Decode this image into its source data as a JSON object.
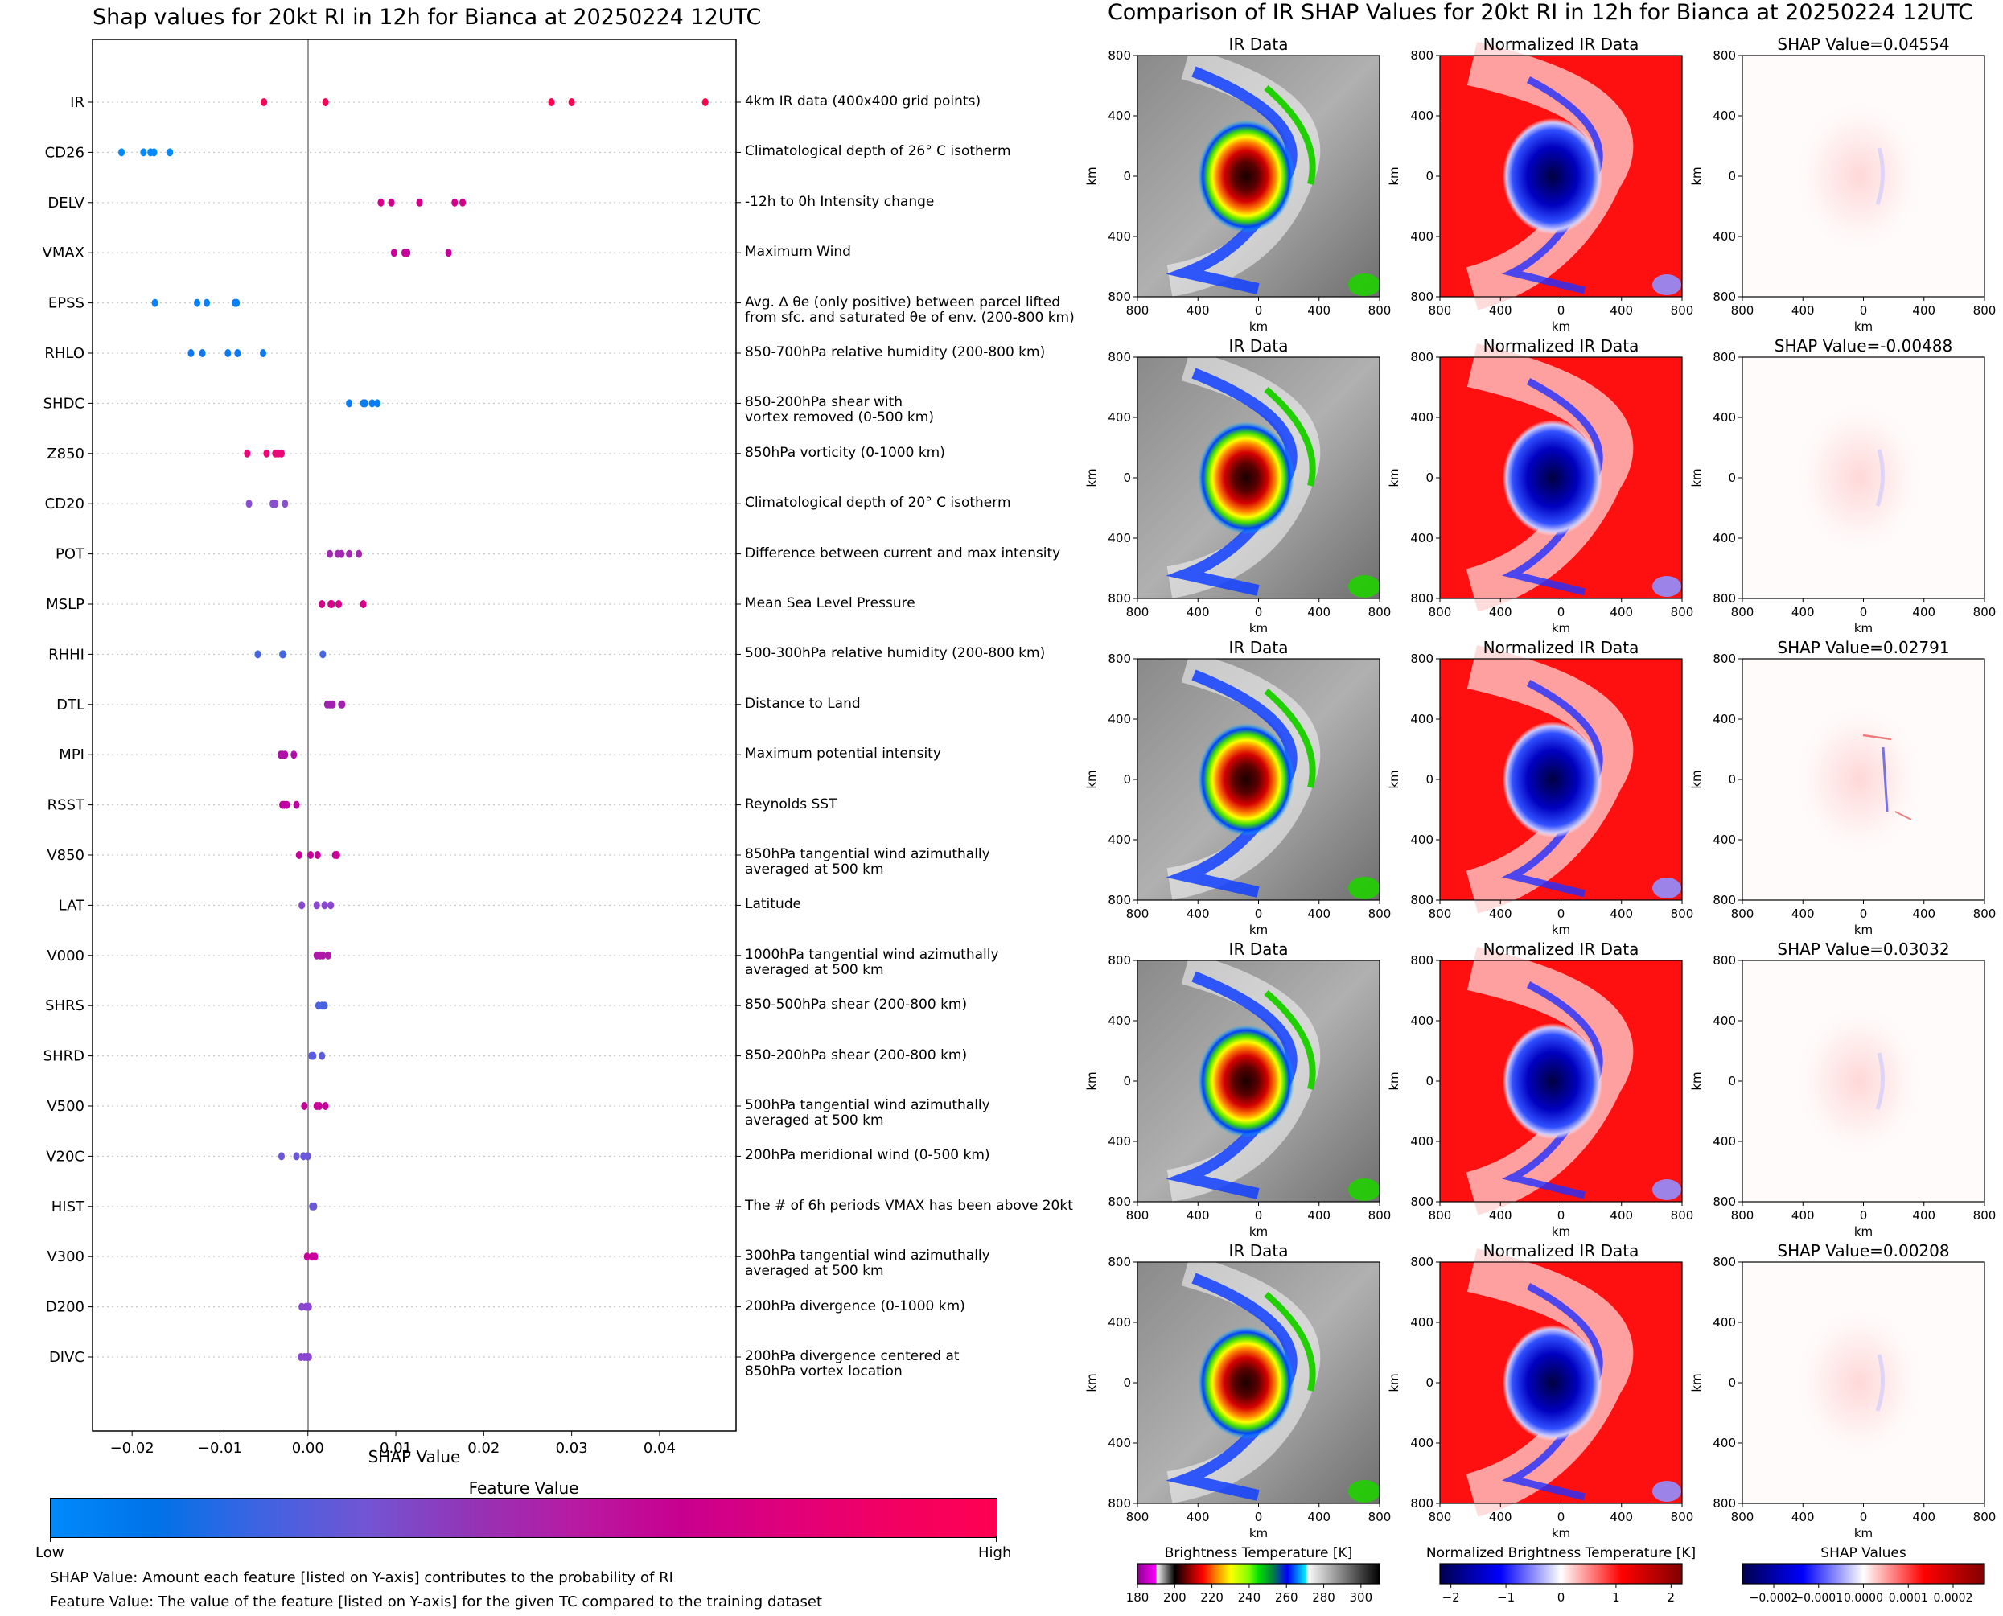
{
  "left": {
    "title": "Shap values for 20kt RI in 12h for Bianca at 20250224 12UTC",
    "colorbar": {
      "title": "Feature Value",
      "low": "Low",
      "high": "High",
      "colors": [
        "#008afb",
        "#0072e8",
        "#3f63e2",
        "#7255d3",
        "#9334b6",
        "#b81aa3",
        "#c8008f",
        "#e0007a",
        "#f20062",
        "#ff0052"
      ]
    },
    "notes": [
      "SHAP Value: Amount each feature [listed on Y-axis] contributes to the probability of RI",
      "Feature Value: The value of the feature [listed on Y-axis] for the given TC compared to the training dataset"
    ]
  },
  "right": {
    "title": "Comparison of IR SHAP Values for 20kt RI in 12h for Bianca at 20250224 12UTC",
    "column_titles": [
      "IR Data",
      "Normalized IR Data"
    ],
    "shap_title_prefix": "SHAP Value=",
    "rows": [
      {
        "shap_value": "0.04554"
      },
      {
        "shap_value": "-0.00488"
      },
      {
        "shap_value": "0.02791"
      },
      {
        "shap_value": "0.03032"
      },
      {
        "shap_value": "0.00208"
      }
    ],
    "axis_ticks": [
      "800",
      "400",
      "0",
      "400",
      "800"
    ],
    "axis_label": "km",
    "colorbars": [
      {
        "title": "Brightness Temperature [K]",
        "min": 180,
        "max": 310,
        "ticks": [
          180,
          200,
          220,
          240,
          260,
          280,
          300
        ]
      },
      {
        "title": "Normalized Brightness Temperature [K]",
        "min": -2.2,
        "max": 2.2,
        "ticks": [
          -2,
          -1,
          0,
          1,
          2
        ],
        "tick_labels": [
          "−2",
          "−1",
          "0",
          "1",
          "2"
        ]
      },
      {
        "title": "SHAP Values",
        "min": -0.00027,
        "max": 0.00027,
        "ticks": [
          -0.0002,
          -0.0001,
          0,
          0.0001,
          0.0002
        ],
        "tick_labels": [
          "−0.0002",
          "−0.0001",
          "0.0000",
          "0.0001",
          "0.0002"
        ]
      }
    ]
  },
  "chart_data": [
    {
      "type": "scatter",
      "title": "Shap values for 20kt RI in 12h for Bianca at 20250224 12UTC",
      "xlabel": "SHAP Value",
      "ylabel": "",
      "xlim": [
        -0.0245,
        0.0487
      ],
      "xticks": [
        -0.02,
        -0.01,
        0.0,
        0.01,
        0.02,
        0.03,
        0.04
      ],
      "xtick_labels": [
        "−0.02",
        "−0.01",
        "0.00",
        "0.01",
        "0.02",
        "0.03",
        "0.04"
      ],
      "grid": "horizontal dotted per feature",
      "vertical_line_at": 0,
      "color_scale": "feature value (low=blue, high=red)",
      "features": [
        {
          "name": "IR",
          "description": "4km IR data (400x400 grid points)",
          "values": [
            -0.005,
            0.002,
            0.0277,
            0.03,
            0.0452
          ],
          "color": "#ff0052"
        },
        {
          "name": "CD26",
          "description": "Climatological depth of 26° C isotherm",
          "values": [
            -0.0212,
            -0.0187,
            -0.0179,
            -0.0175,
            -0.0157
          ],
          "color": "#008afb"
        },
        {
          "name": "DELV",
          "description": "-12h to 0h Intensity change",
          "values": [
            0.0083,
            0.0095,
            0.0127,
            0.0167,
            0.0176
          ],
          "color": "#d3008a"
        },
        {
          "name": "VMAX",
          "description": "Maximum Wind",
          "values": [
            0.0098,
            0.011,
            0.0113,
            0.016
          ],
          "color": "#c8009a"
        },
        {
          "name": "EPSS",
          "description": "Avg. Δ θe (only positive) between parcel lifted\nfrom sfc. and saturated θe of env. (200-800 km)",
          "values": [
            -0.0174,
            -0.0126,
            -0.0115,
            -0.0083,
            -0.0081
          ],
          "color": "#0c80f5"
        },
        {
          "name": "RHLO",
          "description": "850-700hPa relative humidity (200-800 km)",
          "values": [
            -0.0133,
            -0.012,
            -0.0091,
            -0.008,
            -0.0051
          ],
          "color": "#1078ee"
        },
        {
          "name": "SHDC",
          "description": "850-200hPa shear with\nvortex removed (0-500 km)",
          "values": [
            0.0047,
            0.0063,
            0.0065,
            0.0073,
            0.0079
          ],
          "color": "#0a7df0"
        },
        {
          "name": "Z850",
          "description": "850hPa vorticity (0-1000 km)",
          "values": [
            -0.0069,
            -0.0047,
            -0.0037,
            -0.0034,
            -0.003
          ],
          "color": "#e80878"
        },
        {
          "name": "CD20",
          "description": "Climatological depth of 20° C isotherm",
          "values": [
            -0.0067,
            -0.004,
            -0.0037,
            -0.0026
          ],
          "color": "#8a4fd0"
        },
        {
          "name": "POT",
          "description": "Difference between current and max intensity",
          "values": [
            0.0025,
            0.0034,
            0.0038,
            0.0047,
            0.0058
          ],
          "color": "#a22ab0"
        },
        {
          "name": "MSLP",
          "description": "Mean Sea Level Pressure",
          "values": [
            0.0016,
            0.0026,
            0.0027,
            0.0035,
            0.0063
          ],
          "color": "#d8008a"
        },
        {
          "name": "RHHI",
          "description": "500-300hPa relative humidity (200-800 km)",
          "values": [
            -0.0057,
            -0.0029,
            -0.0028,
            0.0017
          ],
          "color": "#4466e0"
        },
        {
          "name": "DTL",
          "description": "Distance to Land",
          "values": [
            0.0022,
            0.0025,
            0.0028,
            0.0038,
            0.0039
          ],
          "color": "#a020b0"
        },
        {
          "name": "MPI",
          "description": "Maximum potential intensity",
          "values": [
            -0.0031,
            -0.0029,
            -0.0026,
            -0.0016
          ],
          "color": "#b010a8"
        },
        {
          "name": "RSST",
          "description": "Reynolds SST",
          "values": [
            -0.0029,
            -0.0027,
            -0.0024,
            -0.0013
          ],
          "color": "#c000a0"
        },
        {
          "name": "V850",
          "description": "850hPa tangential wind azimuthally\naveraged at 500 km",
          "values": [
            -0.001,
            0.0003,
            0.0011,
            0.0031,
            0.0033
          ],
          "color": "#c8009a"
        },
        {
          "name": "LAT",
          "description": "Latitude",
          "values": [
            -0.0007,
            0.001,
            0.0019,
            0.0026
          ],
          "color": "#8a48d0"
        },
        {
          "name": "V000",
          "description": "1000hPa tangential wind azimuthally\naveraged at 500 km",
          "values": [
            0.001,
            0.0014,
            0.0017,
            0.0023
          ],
          "color": "#b018a8"
        },
        {
          "name": "SHRS",
          "description": "850-500hPa shear (200-800 km)",
          "values": [
            0.0012,
            0.0016,
            0.0019
          ],
          "color": "#4a62e0"
        },
        {
          "name": "SHRD",
          "description": "850-200hPa shear (200-800 km)",
          "values": [
            0.0004,
            0.0006,
            0.0016
          ],
          "color": "#5a5ce0"
        },
        {
          "name": "V500",
          "description": "500hPa tangential wind azimuthally\naveraged at 500 km",
          "values": [
            -0.0004,
            0.001,
            0.0013,
            0.002
          ],
          "color": "#c8009a"
        },
        {
          "name": "V20C",
          "description": "200hPa meridional wind (0-500 km)",
          "values": [
            -0.003,
            -0.0013,
            -0.0005,
            0.0
          ],
          "color": "#6a58d8"
        },
        {
          "name": "HIST",
          "description": "The # of 6h periods VMAX has been above 20kt",
          "values": [
            0.0005,
            0.0007
          ],
          "color": "#6a58d8"
        },
        {
          "name": "V300",
          "description": "300hPa tangential wind azimuthally\naveraged at 500 km",
          "values": [
            -0.0001,
            0.0005,
            0.0008
          ],
          "color": "#c8009a"
        },
        {
          "name": "D200",
          "description": "200hPa divergence (0-1000 km)",
          "values": [
            -0.0007,
            -0.0002,
            0.0001
          ],
          "color": "#8a48d0"
        },
        {
          "name": "DIVC",
          "description": "200hPa divergence centered at\n850hPa vortex location",
          "values": [
            -0.0008,
            -0.0004,
            -0.0001,
            0.0001
          ],
          "color": "#8a48d0"
        }
      ]
    },
    {
      "type": "heatmap",
      "title": "Comparison of IR SHAP Values for 20kt RI in 12h for Bianca at 20250224 12UTC",
      "grid": "5 rows x 3 columns",
      "columns": [
        "IR Data",
        "Normalized IR Data",
        "SHAP Value"
      ],
      "shap_values": [
        0.04554,
        -0.00488,
        0.02791,
        0.03032,
        0.00208
      ],
      "xlabel": "km",
      "ylabel": "km",
      "xticks": [
        "800",
        "400",
        "0",
        "400",
        "800"
      ],
      "yticks": [
        "800",
        "400",
        "0",
        "400",
        "800"
      ],
      "colorbars": [
        "Brightness Temperature [K] (180-310)",
        "Normalized Brightness Temperature [K] (-2 to 2)",
        "SHAP Values (-0.0002 to 0.0002)"
      ]
    }
  ]
}
